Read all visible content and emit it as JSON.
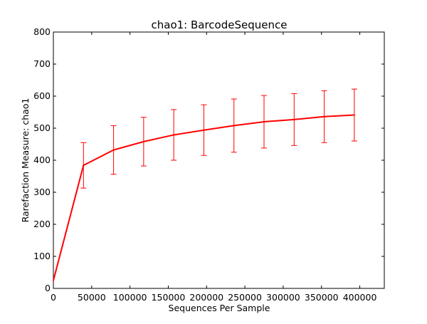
{
  "chart_data": {
    "type": "line",
    "title": "chao1: BarcodeSequence",
    "xlabel": "Sequences Per Sample",
    "ylabel": "Rarefaction Measure: chao1",
    "xlim": [
      0,
      432000
    ],
    "ylim": [
      0,
      800
    ],
    "xticks": [
      0,
      50000,
      100000,
      150000,
      200000,
      250000,
      300000,
      350000,
      400000
    ],
    "yticks": [
      0,
      100,
      200,
      300,
      400,
      500,
      600,
      700,
      800
    ],
    "grid": false,
    "line_color": "#ff0000",
    "series": [
      {
        "x": [
          10,
          39295,
          78580,
          117865,
          157150,
          196435,
          235720,
          275005,
          314290,
          353575,
          392860
        ],
        "y": [
          25,
          384,
          432,
          458,
          479,
          494,
          508,
          520,
          527,
          536,
          541
        ],
        "error": [
          0,
          71,
          76,
          76,
          79,
          79,
          83,
          82,
          81,
          81,
          81
        ]
      }
    ]
  }
}
